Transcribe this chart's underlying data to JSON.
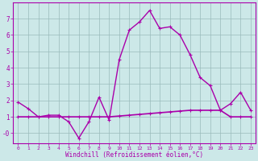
{
  "xlabel": "Windchill (Refroidissement éolien,°C)",
  "bg_color": "#cce8e8",
  "line_color": "#aa00aa",
  "grid_color": "#99bbbb",
  "line1_x": [
    0,
    1,
    2,
    3,
    4,
    5,
    6,
    7,
    8,
    9,
    10,
    11,
    12,
    13,
    14,
    15,
    16,
    17,
    18,
    19,
    20,
    21,
    22,
    23
  ],
  "line1_y": [
    1.9,
    1.5,
    1.0,
    1.1,
    1.1,
    0.7,
    -0.3,
    0.7,
    2.2,
    0.8,
    4.5,
    6.3,
    6.8,
    7.5,
    6.4,
    6.5,
    6.0,
    4.8,
    3.4,
    2.9,
    1.4,
    1.8,
    2.5,
    1.4
  ],
  "line2_x": [
    0,
    1,
    2,
    3,
    4,
    5,
    6,
    7,
    8,
    9,
    10,
    11,
    12,
    13,
    14,
    15,
    16,
    17,
    18,
    19,
    20,
    21,
    22,
    23
  ],
  "line2_y": [
    1.0,
    1.0,
    1.0,
    1.0,
    1.0,
    1.0,
    1.0,
    1.0,
    1.0,
    1.0,
    1.05,
    1.1,
    1.15,
    1.2,
    1.25,
    1.3,
    1.35,
    1.4,
    1.4,
    1.4,
    1.4,
    1.0,
    1.0,
    1.0
  ],
  "xlim": [
    -0.5,
    23.5
  ],
  "ylim": [
    -0.6,
    8.0
  ],
  "yticks": [
    0,
    1,
    2,
    3,
    4,
    5,
    6,
    7
  ],
  "ytick_labels": [
    "-0",
    "1",
    "2",
    "3",
    "4",
    "5",
    "6",
    "7"
  ],
  "xticks": [
    0,
    1,
    2,
    3,
    4,
    5,
    6,
    7,
    8,
    9,
    10,
    11,
    12,
    13,
    14,
    15,
    16,
    17,
    18,
    19,
    20,
    21,
    22,
    23
  ],
  "figsize": [
    3.2,
    2.0
  ],
  "dpi": 100
}
